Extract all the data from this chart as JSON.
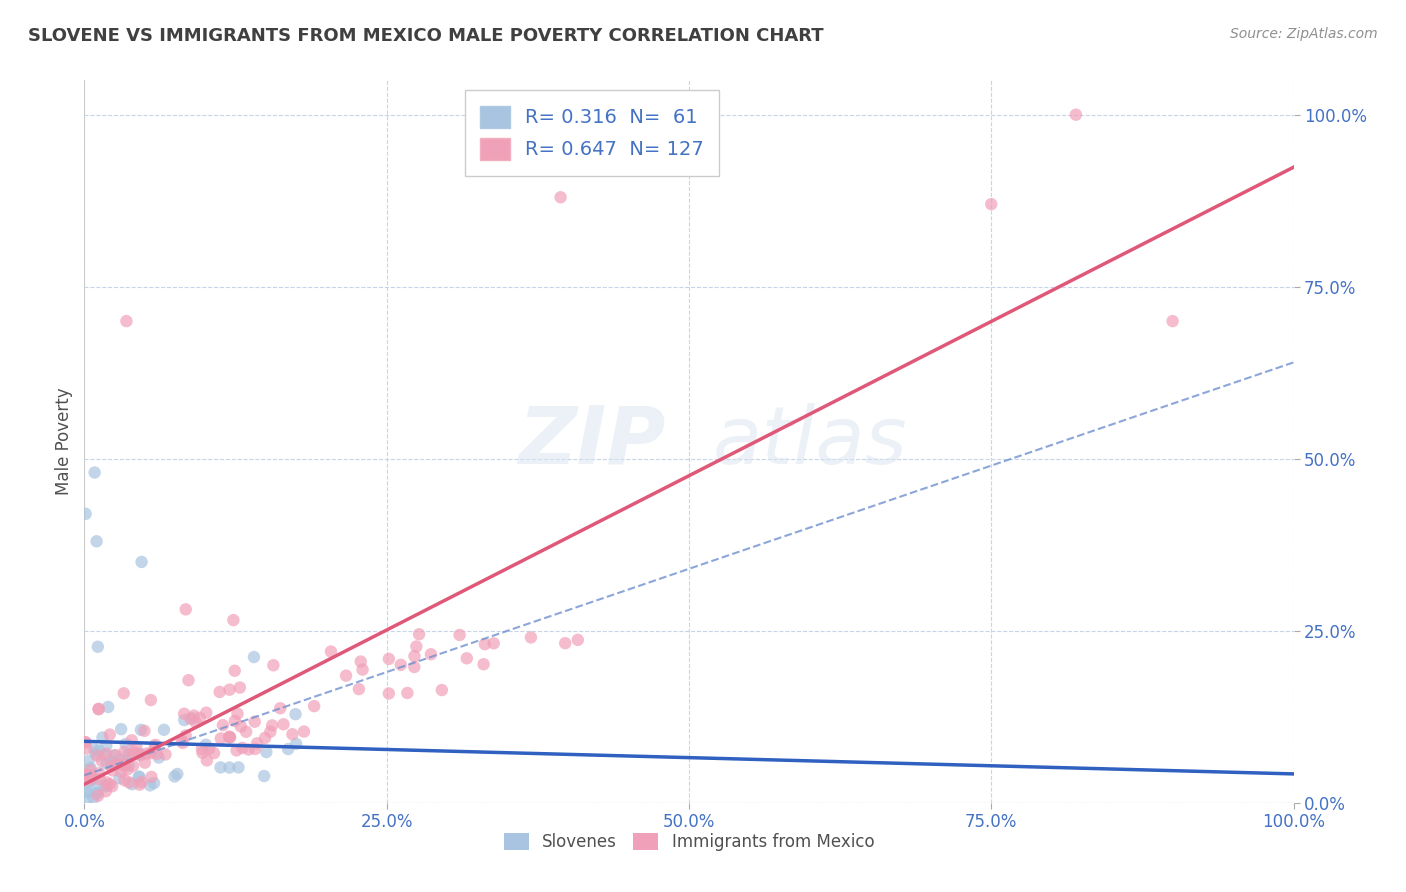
{
  "title": "SLOVENE VS IMMIGRANTS FROM MEXICO MALE POVERTY CORRELATION CHART",
  "source": "Source: ZipAtlas.com",
  "ylabel": "Male Poverty",
  "r_slovene": 0.316,
  "n_slovene": 61,
  "r_mexico": 0.647,
  "n_mexico": 127,
  "slovene_color": "#a8c4e0",
  "mexico_color": "#f0a0b8",
  "trendline_slovene_color": "#3060c0",
  "trendline_mexico_color": "#e05878",
  "title_color": "#404040",
  "label_color": "#4472c4",
  "background_color": "#ffffff",
  "grid_color": "#c8d4e8"
}
